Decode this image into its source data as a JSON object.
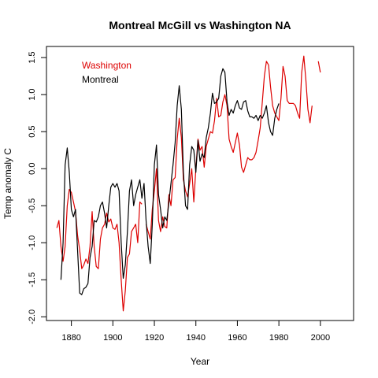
{
  "chart_data": {
    "type": "line",
    "title": "Montreal McGill vs Washington NA",
    "xlabel": "Year",
    "ylabel": "Temp anomaly C",
    "xlim": [
      1868,
      2016
    ],
    "ylim": [
      -2.05,
      1.65
    ],
    "xticks": [
      1880,
      1900,
      1920,
      1940,
      1960,
      1980,
      2000
    ],
    "yticks": [
      -2.0,
      -1.5,
      -1.0,
      -0.5,
      0.0,
      0.5,
      1.0,
      1.5
    ],
    "grid": false,
    "legend_position": "top-left",
    "series": [
      {
        "name": "Washington",
        "color": "#dd0000",
        "segments": [
          [
            [
              1873,
              -0.8
            ],
            [
              1874,
              -0.7
            ],
            [
              1875,
              -1.05
            ],
            [
              1876,
              -1.25
            ],
            [
              1877,
              -1.05
            ],
            [
              1878,
              -0.5
            ],
            [
              1879,
              -0.28
            ],
            [
              1880,
              -0.32
            ],
            [
              1881,
              -0.45
            ],
            [
              1882,
              -0.58
            ],
            [
              1883,
              -0.9
            ],
            [
              1884,
              -1.1
            ],
            [
              1885,
              -1.35
            ],
            [
              1886,
              -1.3
            ],
            [
              1887,
              -1.22
            ],
            [
              1888,
              -1.28
            ],
            [
              1889,
              -1.05
            ],
            [
              1890,
              -0.58
            ],
            [
              1891,
              -1.05
            ],
            [
              1892,
              -1.32
            ],
            [
              1893,
              -1.35
            ],
            [
              1894,
              -0.95
            ],
            [
              1895,
              -0.8
            ],
            [
              1896,
              -0.75
            ],
            [
              1897,
              -0.6
            ],
            [
              1898,
              -0.72
            ],
            [
              1899,
              -0.68
            ],
            [
              1900,
              -0.8
            ],
            [
              1901,
              -0.82
            ],
            [
              1902,
              -0.75
            ],
            [
              1903,
              -1.0
            ],
            [
              1904,
              -1.5
            ],
            [
              1905,
              -1.92
            ],
            [
              1906,
              -1.65
            ],
            [
              1907,
              -1.2
            ],
            [
              1908,
              -1.15
            ],
            [
              1909,
              -0.85
            ],
            [
              1910,
              -0.8
            ],
            [
              1911,
              -0.75
            ],
            [
              1912,
              -1.0
            ],
            [
              1913,
              -0.45
            ],
            [
              1914,
              -0.48
            ]
          ],
          [
            [
              1916,
              -0.75
            ],
            [
              1917,
              -0.85
            ],
            [
              1918,
              -0.95
            ],
            [
              1919,
              -0.55
            ],
            [
              1920,
              -0.3
            ],
            [
              1921,
              0.0
            ],
            [
              1922,
              -0.7
            ],
            [
              1923,
              -0.85
            ],
            [
              1924,
              -0.65
            ],
            [
              1925,
              -0.78
            ],
            [
              1926,
              -0.8
            ],
            [
              1927,
              -0.35
            ],
            [
              1928,
              -0.5
            ],
            [
              1929,
              -0.15
            ],
            [
              1930,
              -0.12
            ],
            [
              1931,
              0.4
            ],
            [
              1932,
              0.68
            ],
            [
              1933,
              0.42
            ],
            [
              1934,
              -0.15
            ],
            [
              1935,
              -0.3
            ],
            [
              1936,
              -0.38
            ],
            [
              1937,
              -0.2
            ],
            [
              1938,
              0.0
            ],
            [
              1939,
              -0.45
            ],
            [
              1940,
              0.0
            ],
            [
              1941,
              0.4
            ],
            [
              1942,
              0.25
            ],
            [
              1943,
              0.3
            ],
            [
              1944,
              0.02
            ],
            [
              1945,
              0.3
            ],
            [
              1946,
              0.4
            ],
            [
              1947,
              0.5
            ],
            [
              1948,
              0.48
            ],
            [
              1949,
              0.65
            ],
            [
              1950,
              0.95
            ],
            [
              1951,
              0.7
            ],
            [
              1952,
              0.72
            ],
            [
              1953,
              0.9
            ],
            [
              1954,
              1.0
            ],
            [
              1955,
              0.85
            ],
            [
              1956,
              0.4
            ],
            [
              1957,
              0.3
            ],
            [
              1958,
              0.22
            ],
            [
              1959,
              0.35
            ],
            [
              1960,
              0.48
            ],
            [
              1961,
              0.32
            ],
            [
              1962,
              0.02
            ],
            [
              1963,
              -0.05
            ],
            [
              1964,
              0.05
            ],
            [
              1965,
              0.15
            ],
            [
              1966,
              0.12
            ],
            [
              1967,
              0.12
            ],
            [
              1968,
              0.15
            ],
            [
              1969,
              0.22
            ],
            [
              1970,
              0.38
            ],
            [
              1971,
              0.55
            ],
            [
              1972,
              0.9
            ],
            [
              1973,
              1.25
            ],
            [
              1974,
              1.45
            ],
            [
              1975,
              1.4
            ],
            [
              1976,
              1.1
            ],
            [
              1977,
              0.85
            ],
            [
              1978,
              0.75
            ],
            [
              1979,
              0.7
            ],
            [
              1980,
              0.65
            ],
            [
              1981,
              0.95
            ],
            [
              1982,
              1.38
            ],
            [
              1983,
              1.25
            ],
            [
              1984,
              0.92
            ],
            [
              1985,
              0.88
            ],
            [
              1986,
              0.88
            ],
            [
              1987,
              0.88
            ],
            [
              1988,
              0.85
            ],
            [
              1989,
              0.75
            ],
            [
              1990,
              0.68
            ],
            [
              1991,
              1.3
            ],
            [
              1992,
              1.52
            ],
            [
              1993,
              1.2
            ],
            [
              1994,
              0.8
            ],
            [
              1995,
              0.62
            ],
            [
              1996,
              0.85
            ]
          ],
          [
            [
              1999,
              1.45
            ],
            [
              2000,
              1.3
            ]
          ]
        ]
      },
      {
        "name": "Montreal",
        "color": "#000000",
        "segments": [
          [
            [
              1875,
              -1.5
            ],
            [
              1876,
              -1.0
            ],
            [
              1877,
              0.05
            ],
            [
              1878,
              0.28
            ],
            [
              1879,
              -0.05
            ],
            [
              1880,
              -0.55
            ],
            [
              1881,
              -0.65
            ],
            [
              1882,
              -0.55
            ],
            [
              1883,
              -1.1
            ],
            [
              1884,
              -1.68
            ],
            [
              1885,
              -1.7
            ],
            [
              1886,
              -1.62
            ],
            [
              1887,
              -1.6
            ],
            [
              1888,
              -1.55
            ],
            [
              1889,
              -1.2
            ],
            [
              1890,
              -1.05
            ],
            [
              1891,
              -0.7
            ],
            [
              1892,
              -0.72
            ],
            [
              1893,
              -0.65
            ],
            [
              1894,
              -0.5
            ],
            [
              1895,
              -0.45
            ],
            [
              1896,
              -0.6
            ],
            [
              1897,
              -0.8
            ],
            [
              1898,
              -0.5
            ],
            [
              1899,
              -0.25
            ],
            [
              1900,
              -0.2
            ],
            [
              1901,
              -0.25
            ],
            [
              1902,
              -0.2
            ],
            [
              1903,
              -0.3
            ],
            [
              1904,
              -1.0
            ],
            [
              1905,
              -1.48
            ],
            [
              1906,
              -1.3
            ],
            [
              1907,
              -0.85
            ],
            [
              1908,
              -0.3
            ],
            [
              1909,
              -0.15
            ],
            [
              1910,
              -0.5
            ],
            [
              1911,
              -0.35
            ],
            [
              1912,
              -0.25
            ],
            [
              1913,
              -0.15
            ],
            [
              1914,
              -0.4
            ],
            [
              1915,
              -0.2
            ],
            [
              1916,
              -0.7
            ],
            [
              1917,
              -1.05
            ],
            [
              1918,
              -1.28
            ],
            [
              1919,
              -0.75
            ],
            [
              1920,
              0.05
            ],
            [
              1921,
              0.32
            ],
            [
              1922,
              -0.35
            ],
            [
              1923,
              -0.55
            ],
            [
              1924,
              -0.8
            ],
            [
              1925,
              -0.65
            ],
            [
              1926,
              -0.7
            ],
            [
              1927,
              -0.45
            ],
            [
              1928,
              -0.2
            ],
            [
              1929,
              0.05
            ],
            [
              1930,
              0.35
            ],
            [
              1931,
              0.85
            ],
            [
              1932,
              1.12
            ],
            [
              1933,
              0.8
            ],
            [
              1934,
              -0.05
            ],
            [
              1935,
              -0.5
            ],
            [
              1936,
              -0.55
            ],
            [
              1937,
              0.05
            ],
            [
              1938,
              0.3
            ],
            [
              1939,
              0.25
            ],
            [
              1940,
              -0.05
            ],
            [
              1941,
              0.38
            ],
            [
              1942,
              0.1
            ],
            [
              1943,
              0.2
            ],
            [
              1944,
              0.15
            ],
            [
              1945,
              0.42
            ],
            [
              1946,
              0.55
            ],
            [
              1947,
              0.75
            ],
            [
              1948,
              1.02
            ],
            [
              1949,
              0.88
            ],
            [
              1950,
              0.9
            ],
            [
              1951,
              0.95
            ],
            [
              1952,
              1.25
            ],
            [
              1953,
              1.35
            ],
            [
              1954,
              1.3
            ],
            [
              1955,
              0.9
            ],
            [
              1956,
              0.72
            ],
            [
              1957,
              0.8
            ],
            [
              1958,
              0.75
            ],
            [
              1959,
              0.85
            ],
            [
              1960,
              0.92
            ],
            [
              1961,
              0.82
            ],
            [
              1962,
              0.8
            ],
            [
              1963,
              0.9
            ],
            [
              1964,
              0.92
            ],
            [
              1965,
              0.78
            ],
            [
              1966,
              0.7
            ],
            [
              1967,
              0.7
            ],
            [
              1968,
              0.68
            ],
            [
              1969,
              0.72
            ],
            [
              1970,
              0.65
            ],
            [
              1971,
              0.72
            ],
            [
              1972,
              0.68
            ],
            [
              1973,
              0.75
            ],
            [
              1974,
              0.85
            ],
            [
              1975,
              0.62
            ],
            [
              1976,
              0.5
            ],
            [
              1977,
              0.45
            ],
            [
              1978,
              0.68
            ],
            [
              1979,
              0.8
            ],
            [
              1980,
              0.88
            ]
          ]
        ]
      }
    ]
  }
}
